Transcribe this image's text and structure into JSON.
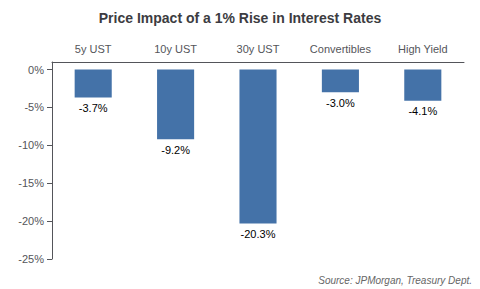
{
  "chart_data": {
    "type": "bar",
    "title": "Price Impact of a 1% Rise in Interest Rates",
    "categories": [
      "5y UST",
      "10y UST",
      "30y UST",
      "Convertibles",
      "High Yield"
    ],
    "values": [
      -3.7,
      -9.2,
      -20.3,
      -3.0,
      -4.1
    ],
    "value_labels": [
      "-3.7%",
      "-9.2%",
      "-20.3%",
      "-3.0%",
      "-4.1%"
    ],
    "data_labels": true,
    "color": "#4472a8",
    "ylim": [
      -25,
      1
    ],
    "yticks": [
      {
        "value": 0,
        "label": "0%"
      },
      {
        "value": -5,
        "label": "-5%"
      },
      {
        "value": -10,
        "label": "-10%"
      },
      {
        "value": -15,
        "label": "-15%"
      },
      {
        "value": -20,
        "label": "-20%"
      },
      {
        "value": -25,
        "label": "-25%"
      }
    ],
    "grid": false,
    "annotations": [
      "Source: JPMorgan, Treasury Dept."
    ]
  }
}
